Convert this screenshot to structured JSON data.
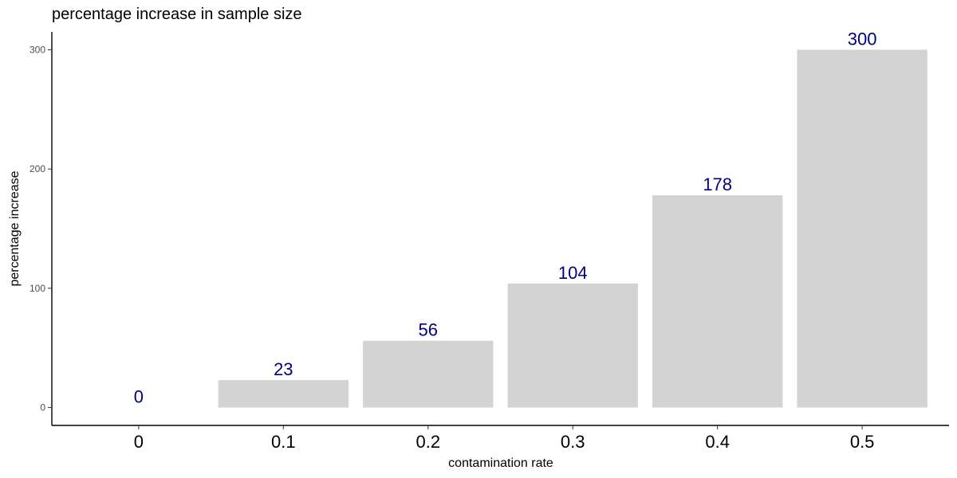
{
  "chart_data": {
    "type": "bar",
    "title": "percentage increase in sample size",
    "xlabel": "contamination rate",
    "ylabel": "percentage increase",
    "categories": [
      "0",
      "0.1",
      "0.2",
      "0.3",
      "0.4",
      "0.5"
    ],
    "values": [
      0,
      23,
      56,
      104,
      178,
      300
    ],
    "data_labels": [
      "0",
      "23",
      "56",
      "104",
      "178",
      "300"
    ],
    "yticks": [
      0,
      100,
      200,
      300
    ],
    "ylim": [
      -15,
      315
    ],
    "grid": false,
    "legend": "none",
    "colors": {
      "bar": "#d3d3d3",
      "label": "#000080",
      "axis": "#000000",
      "tick_label": "#4d4d4d"
    }
  }
}
